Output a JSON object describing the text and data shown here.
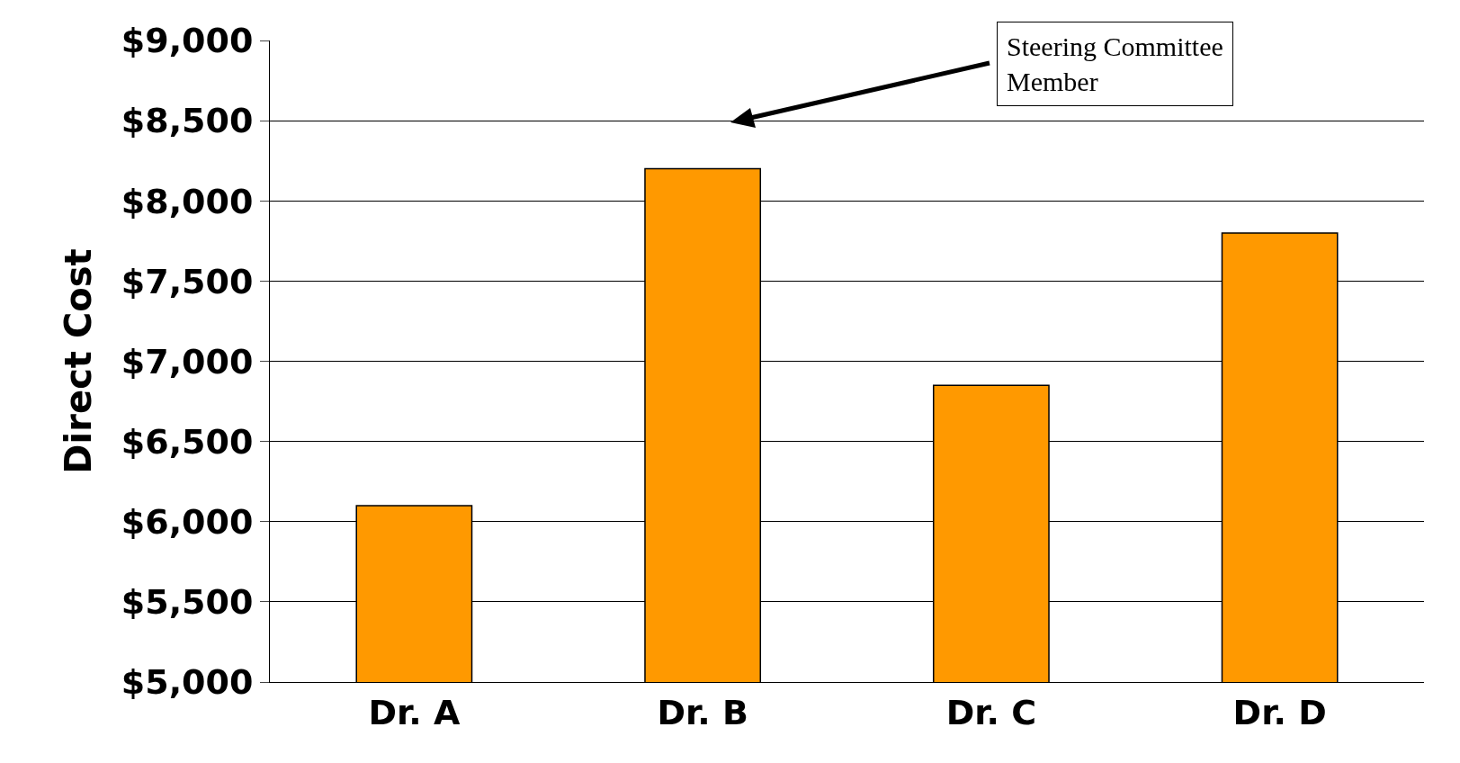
{
  "chart_data": {
    "type": "bar",
    "ylabel": "Direct Cost",
    "categories": [
      "Dr. A",
      "Dr. B",
      "Dr. C",
      "Dr. D"
    ],
    "values": [
      6100,
      8200,
      6850,
      7800
    ],
    "color": "#ff9900",
    "ylim": [
      5000,
      9000
    ],
    "yticks": [
      {
        "value": 5000,
        "label": "$5,000"
      },
      {
        "value": 5500,
        "label": "$5,500"
      },
      {
        "value": 6000,
        "label": "$6,000"
      },
      {
        "value": 6500,
        "label": "$6,500"
      },
      {
        "value": 7000,
        "label": "$7,000"
      },
      {
        "value": 7500,
        "label": "$7,500"
      },
      {
        "value": 8000,
        "label": "$8,000"
      },
      {
        "value": 8500,
        "label": "$8,500"
      },
      {
        "value": 9000,
        "label": "$9,000"
      }
    ],
    "grid": "y",
    "annotations": [
      "Steering Committee\nMember"
    ]
  }
}
